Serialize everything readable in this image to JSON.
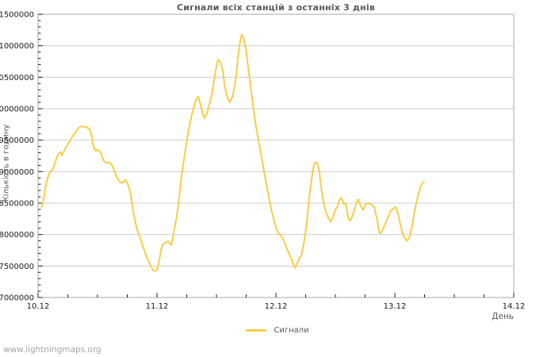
{
  "watermark": "www.lightningmaps.org",
  "colors": {
    "accent": "#f7ce46",
    "grid": "#cccccc",
    "frame": "#a9a9a9",
    "tick": "#222222",
    "tick_label": "#1a1a1a",
    "title_text": "#58595b",
    "muted_text": "#595959",
    "watermark_text": "#a6a6a6",
    "background": "#ffffff"
  },
  "chart_data": {
    "type": "line",
    "title": "Сигнали всіх станцій з останніх 3 днів",
    "xlabel": "День",
    "ylabel": "Кількість в годину",
    "x_tick_labels": [
      "10.12",
      "11.12",
      "12.12",
      "13.12",
      "14.12"
    ],
    "x_range_days": [
      0,
      4
    ],
    "x_minor_step_days": 0.25,
    "ylim": [
      7000000,
      11500000
    ],
    "y_tick_step": 500000,
    "y_minor_step": 100000,
    "grid": "horizontal-major-only",
    "legend": {
      "position": "bottom-center",
      "entries": [
        {
          "label": "Сигнали",
          "color": "#f7ce46"
        }
      ]
    },
    "series": [
      {
        "name": "Сигнали",
        "color": "#f7ce46",
        "points": [
          [
            0.03,
            8440000
          ],
          [
            0.047,
            8570000
          ],
          [
            0.06,
            8720000
          ],
          [
            0.075,
            8860000
          ],
          [
            0.09,
            8960000
          ],
          [
            0.107,
            9000000
          ],
          [
            0.127,
            9050000
          ],
          [
            0.147,
            9160000
          ],
          [
            0.167,
            9270000
          ],
          [
            0.187,
            9310000
          ],
          [
            0.2,
            9260000
          ],
          [
            0.213,
            9310000
          ],
          [
            0.233,
            9380000
          ],
          [
            0.253,
            9440000
          ],
          [
            0.273,
            9510000
          ],
          [
            0.293,
            9570000
          ],
          [
            0.313,
            9620000
          ],
          [
            0.333,
            9680000
          ],
          [
            0.353,
            9710000
          ],
          [
            0.373,
            9720000
          ],
          [
            0.393,
            9710000
          ],
          [
            0.413,
            9700000
          ],
          [
            0.433,
            9680000
          ],
          [
            0.447,
            9600000
          ],
          [
            0.46,
            9450000
          ],
          [
            0.473,
            9360000
          ],
          [
            0.487,
            9330000
          ],
          [
            0.5,
            9350000
          ],
          [
            0.513,
            9330000
          ],
          [
            0.527,
            9300000
          ],
          [
            0.54,
            9230000
          ],
          [
            0.553,
            9170000
          ],
          [
            0.573,
            9140000
          ],
          [
            0.6,
            9140000
          ],
          [
            0.62,
            9110000
          ],
          [
            0.64,
            9020000
          ],
          [
            0.66,
            8920000
          ],
          [
            0.68,
            8850000
          ],
          [
            0.7,
            8820000
          ],
          [
            0.72,
            8830000
          ],
          [
            0.733,
            8870000
          ],
          [
            0.753,
            8820000
          ],
          [
            0.767,
            8720000
          ],
          [
            0.78,
            8630000
          ],
          [
            0.793,
            8450000
          ],
          [
            0.807,
            8300000
          ],
          [
            0.82,
            8180000
          ],
          [
            0.833,
            8080000
          ],
          [
            0.847,
            8000000
          ],
          [
            0.867,
            7900000
          ],
          [
            0.887,
            7780000
          ],
          [
            0.907,
            7670000
          ],
          [
            0.927,
            7590000
          ],
          [
            0.947,
            7500000
          ],
          [
            0.967,
            7440000
          ],
          [
            0.987,
            7420000
          ],
          [
            1.0,
            7440000
          ],
          [
            1.013,
            7520000
          ],
          [
            1.027,
            7680000
          ],
          [
            1.04,
            7800000
          ],
          [
            1.053,
            7850000
          ],
          [
            1.073,
            7870000
          ],
          [
            1.093,
            7900000
          ],
          [
            1.107,
            7860000
          ],
          [
            1.12,
            7830000
          ],
          [
            1.133,
            7950000
          ],
          [
            1.147,
            8100000
          ],
          [
            1.167,
            8300000
          ],
          [
            1.187,
            8600000
          ],
          [
            1.207,
            8950000
          ],
          [
            1.227,
            9200000
          ],
          [
            1.247,
            9450000
          ],
          [
            1.267,
            9680000
          ],
          [
            1.287,
            9850000
          ],
          [
            1.307,
            10010000
          ],
          [
            1.327,
            10130000
          ],
          [
            1.347,
            10190000
          ],
          [
            1.367,
            10050000
          ],
          [
            1.387,
            9900000
          ],
          [
            1.4,
            9850000
          ],
          [
            1.42,
            9930000
          ],
          [
            1.44,
            10060000
          ],
          [
            1.46,
            10220000
          ],
          [
            1.48,
            10450000
          ],
          [
            1.5,
            10680000
          ],
          [
            1.513,
            10780000
          ],
          [
            1.533,
            10740000
          ],
          [
            1.553,
            10600000
          ],
          [
            1.573,
            10330000
          ],
          [
            1.593,
            10170000
          ],
          [
            1.613,
            10100000
          ],
          [
            1.633,
            10180000
          ],
          [
            1.653,
            10350000
          ],
          [
            1.667,
            10550000
          ],
          [
            1.68,
            10800000
          ],
          [
            1.7,
            11080000
          ],
          [
            1.713,
            11180000
          ],
          [
            1.727,
            11120000
          ],
          [
            1.747,
            10950000
          ],
          [
            1.767,
            10650000
          ],
          [
            1.787,
            10350000
          ],
          [
            1.807,
            10060000
          ],
          [
            1.827,
            9780000
          ],
          [
            1.853,
            9500000
          ],
          [
            1.877,
            9250000
          ],
          [
            1.9,
            9000000
          ],
          [
            1.92,
            8800000
          ],
          [
            1.947,
            8530000
          ],
          [
            1.967,
            8350000
          ],
          [
            1.987,
            8200000
          ],
          [
            2.007,
            8080000
          ],
          [
            2.027,
            8010000
          ],
          [
            2.047,
            7970000
          ],
          [
            2.06,
            7930000
          ],
          [
            2.08,
            7840000
          ],
          [
            2.1,
            7740000
          ],
          [
            2.127,
            7630000
          ],
          [
            2.147,
            7530000
          ],
          [
            2.16,
            7470000
          ],
          [
            2.18,
            7550000
          ],
          [
            2.2,
            7640000
          ],
          [
            2.213,
            7660000
          ],
          [
            2.233,
            7840000
          ],
          [
            2.247,
            8010000
          ],
          [
            2.26,
            8180000
          ],
          [
            2.28,
            8590000
          ],
          [
            2.293,
            8800000
          ],
          [
            2.307,
            8970000
          ],
          [
            2.32,
            9120000
          ],
          [
            2.333,
            9150000
          ],
          [
            2.347,
            9140000
          ],
          [
            2.367,
            8970000
          ],
          [
            2.38,
            8750000
          ],
          [
            2.393,
            8590000
          ],
          [
            2.413,
            8410000
          ],
          [
            2.427,
            8330000
          ],
          [
            2.447,
            8240000
          ],
          [
            2.46,
            8200000
          ],
          [
            2.48,
            8280000
          ],
          [
            2.5,
            8390000
          ],
          [
            2.52,
            8460000
          ],
          [
            2.533,
            8540000
          ],
          [
            2.547,
            8580000
          ],
          [
            2.56,
            8540000
          ],
          [
            2.573,
            8480000
          ],
          [
            2.587,
            8500000
          ],
          [
            2.6,
            8350000
          ],
          [
            2.613,
            8240000
          ],
          [
            2.627,
            8220000
          ],
          [
            2.64,
            8280000
          ],
          [
            2.66,
            8390000
          ],
          [
            2.68,
            8520000
          ],
          [
            2.693,
            8560000
          ],
          [
            2.713,
            8460000
          ],
          [
            2.733,
            8390000
          ],
          [
            2.753,
            8480000
          ],
          [
            2.78,
            8500000
          ],
          [
            2.8,
            8480000
          ],
          [
            2.827,
            8440000
          ],
          [
            2.84,
            8330000
          ],
          [
            2.853,
            8210000
          ],
          [
            2.867,
            8040000
          ],
          [
            2.88,
            8020000
          ],
          [
            2.9,
            8080000
          ],
          [
            2.927,
            8210000
          ],
          [
            2.947,
            8290000
          ],
          [
            2.967,
            8380000
          ],
          [
            2.993,
            8420000
          ],
          [
            3.007,
            8440000
          ],
          [
            3.027,
            8330000
          ],
          [
            3.047,
            8150000
          ],
          [
            3.067,
            8000000
          ],
          [
            3.087,
            7940000
          ],
          [
            3.1,
            7900000
          ],
          [
            3.113,
            7920000
          ],
          [
            3.127,
            7980000
          ],
          [
            3.147,
            8150000
          ],
          [
            3.167,
            8380000
          ],
          [
            3.18,
            8500000
          ],
          [
            3.193,
            8600000
          ],
          [
            3.207,
            8690000
          ],
          [
            3.22,
            8780000
          ],
          [
            3.233,
            8820000
          ],
          [
            3.247,
            8840000
          ]
        ]
      }
    ]
  }
}
